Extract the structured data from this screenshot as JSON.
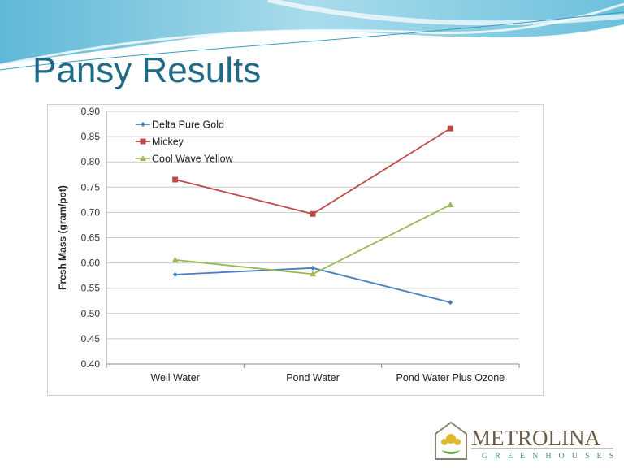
{
  "slide": {
    "title": "Pansy Results"
  },
  "logo": {
    "name": "METROLINA",
    "sub": "GREENHOUSES"
  },
  "colors": {
    "title": "#1f6a86",
    "delta": "#4a7ebb",
    "mickey": "#be4b48",
    "cool": "#98b954"
  },
  "chart_data": {
    "type": "line",
    "title": "",
    "xlabel": "",
    "ylabel": "Fresh Mass (gram/pot)",
    "categories": [
      "Well Water",
      "Pond Water",
      "Pond Water Plus Ozone"
    ],
    "ylim": [
      0.4,
      0.9
    ],
    "yticks": [
      "0.40",
      "0.45",
      "0.50",
      "0.55",
      "0.60",
      "0.65",
      "0.70",
      "0.75",
      "0.80",
      "0.85",
      "0.90"
    ],
    "grid": true,
    "legend": "top-left",
    "series": [
      {
        "name": "Delta Pure Gold",
        "values": [
          0.577,
          0.59,
          0.522
        ],
        "color": "#4a7ebb",
        "marker": "diamond"
      },
      {
        "name": "Mickey",
        "values": [
          0.765,
          0.697,
          0.866
        ],
        "color": "#be4b48",
        "marker": "square"
      },
      {
        "name": "Cool Wave Yellow",
        "values": [
          0.606,
          0.578,
          0.715
        ],
        "color": "#98b954",
        "marker": "triangle"
      }
    ]
  }
}
